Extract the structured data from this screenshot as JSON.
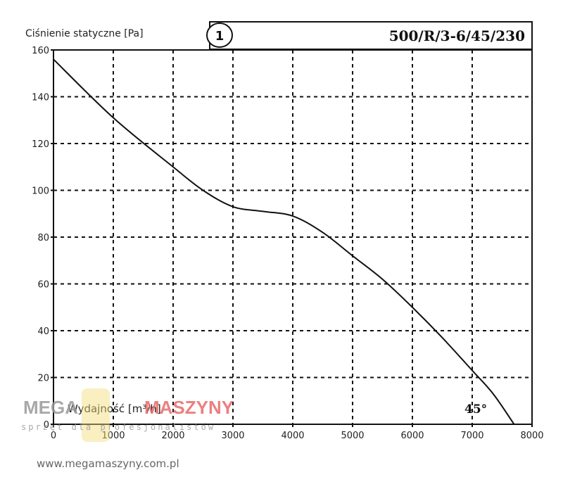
{
  "chart_data": {
    "type": "line",
    "ylabel": "Ciśnienie statyczne [Pa]",
    "xlabel": "Wydajność [m³/h]",
    "curve_number": "1",
    "model": "500/R/3-6/45/230",
    "angle_label": "45°",
    "xlim": [
      0,
      8000
    ],
    "ylim": [
      0,
      160
    ],
    "xticks": [
      0,
      1000,
      2000,
      3000,
      4000,
      5000,
      6000,
      7000,
      8000
    ],
    "yticks": [
      0,
      20,
      40,
      60,
      80,
      100,
      120,
      140,
      160
    ],
    "grid": true,
    "series": [
      {
        "x": [
          0,
          1000,
          2000,
          2500,
          3000,
          3500,
          4000,
          4500,
          5000,
          5500,
          6000,
          6500,
          7000,
          7350,
          7700
        ],
        "y": [
          156,
          131,
          110,
          100,
          93,
          91,
          89,
          82,
          72,
          62,
          50,
          37,
          23,
          13,
          0
        ]
      }
    ],
    "line_color": "#111111",
    "grid_color": "#111111"
  },
  "watermark": {
    "logo_part1": "MEGA",
    "logo_part2": "MASZYNY",
    "tagline": "sprzęt dla profesjonalistów",
    "url": "www.megamaszyny.com.pl"
  }
}
